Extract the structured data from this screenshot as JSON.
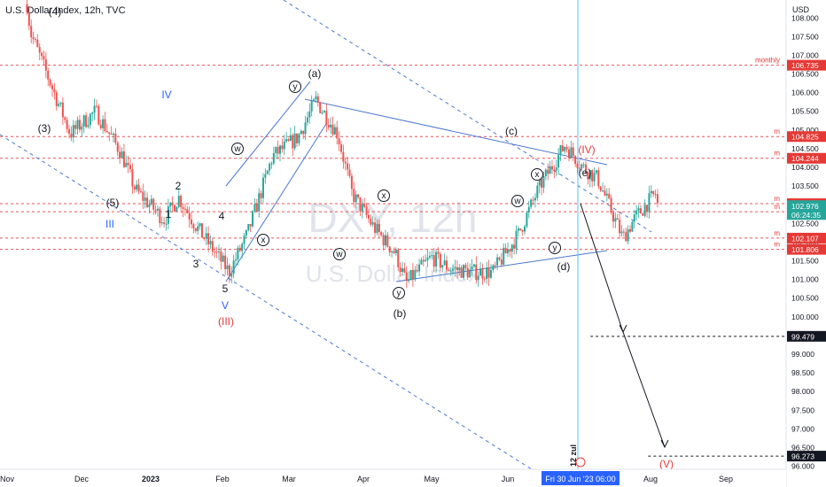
{
  "header": {
    "title": "U.S. Dollar Index, 12h, TVC",
    "currency": "USD"
  },
  "watermark": {
    "ticker": "DXY, 12h",
    "name": "U.S. Dollar Index"
  },
  "colors": {
    "up": "#26a69a",
    "down": "#ef5350",
    "trend": "#4a78d0",
    "wave_red": "#e53935",
    "level_red": "#e53935",
    "price_green": "#26a69a",
    "crosshair": "#4fc3f7"
  },
  "chart_data": {
    "type": "candlestick",
    "title": "U.S. Dollar Index, 12h, TVC",
    "ylim": [
      95.92,
      108.48
    ],
    "y_ticks": [
      "108.000",
      "107.500",
      "107.000",
      "106.500",
      "106.000",
      "105.500",
      "105.000",
      "104.500",
      "104.000",
      "103.500",
      "103.000",
      "102.500",
      "102.000",
      "101.500",
      "101.000",
      "100.500",
      "100.000",
      "99.500",
      "99.000",
      "98.500",
      "98.000",
      "97.500",
      "97.000",
      "96.500",
      "96.000"
    ],
    "x_ticks": [
      "Nov",
      "Dec",
      "2023",
      "Feb",
      "Mar",
      "Apr",
      "May",
      "Jun",
      "Jul",
      "Aug",
      "Sep"
    ],
    "price_path": [
      [
        0,
        113
      ],
      [
        0.35,
        107.6
      ],
      [
        0.9,
        104.9
      ],
      [
        1.25,
        105.5
      ],
      [
        1.6,
        104.4
      ],
      [
        1.8,
        103.4
      ],
      [
        2.2,
        102.6
      ],
      [
        2.4,
        103.2
      ],
      [
        2.65,
        102.4
      ],
      [
        3.1,
        101.2
      ],
      [
        3.35,
        102.2
      ],
      [
        3.7,
        104.3
      ],
      [
        4.05,
        104.8
      ],
      [
        4.3,
        105.8
      ],
      [
        4.6,
        104.9
      ],
      [
        4.8,
        103.3
      ],
      [
        5.1,
        102.4
      ],
      [
        5.4,
        101.7
      ],
      [
        5.55,
        100.9
      ],
      [
        5.9,
        101.6
      ],
      [
        6.15,
        101.3
      ],
      [
        6.45,
        101.2
      ],
      [
        6.75,
        101.2
      ],
      [
        7.1,
        102.2
      ],
      [
        7.4,
        103.5
      ],
      [
        7.75,
        104.6
      ],
      [
        8.0,
        104.0
      ],
      [
        8.2,
        103.7
      ],
      [
        8.55,
        102.1
      ],
      [
        8.7,
        102.6
      ],
      [
        9.0,
        103.3
      ],
      [
        9.03,
        103.0
      ]
    ],
    "last_price": "102.976",
    "countdown": "06:24:35",
    "cursor_date": "Fri 30 Jun '23",
    "cursor_time": "06:00",
    "date_marker": "12 zul",
    "levels": [
      {
        "price": 106.735,
        "label": "106.735",
        "tag": "monthly"
      },
      {
        "price": 104.825,
        "label": "104.825",
        "tag": "m"
      },
      {
        "price": 104.244,
        "label": "104.244",
        "tag": "m"
      },
      {
        "price": 103.03,
        "label": "103.030",
        "tag": "m"
      },
      {
        "price": 102.813,
        "label": "102.813",
        "tag": "m"
      },
      {
        "price": 102.107,
        "label": "102.107",
        "tag": "m"
      },
      {
        "price": 101.806,
        "label": "101.806",
        "tag": "m"
      }
    ],
    "targets": [
      {
        "price": 99.479,
        "label": "99.479"
      },
      {
        "price": 96.273,
        "label": "96.273"
      }
    ],
    "wave_labels": [
      {
        "text": "(4)",
        "color": "black"
      },
      {
        "text": "(3)",
        "color": "black"
      },
      {
        "text": "(5)",
        "color": "black"
      },
      {
        "text": "IV",
        "color": "blue"
      },
      {
        "text": "III",
        "color": "blue"
      },
      {
        "text": "2",
        "color": "black"
      },
      {
        "text": "1",
        "color": "black"
      },
      {
        "text": "3",
        "color": "black"
      },
      {
        "text": "4",
        "color": "black"
      },
      {
        "text": "5",
        "color": "black"
      },
      {
        "text": "V",
        "color": "blue"
      },
      {
        "text": "(III)",
        "color": "red"
      },
      {
        "text": "(a)",
        "color": "black"
      },
      {
        "text": "(b)",
        "color": "black"
      },
      {
        "text": "(c)",
        "color": "black"
      },
      {
        "text": "(d)",
        "color": "black"
      },
      {
        "text": "(e)",
        "color": "black"
      },
      {
        "text": "(IV)",
        "color": "red"
      },
      {
        "text": "(V)",
        "color": "red"
      }
    ],
    "circle_labels": [
      "y",
      "w",
      "x",
      "x",
      "w",
      "y",
      "w",
      "x",
      "y",
      "x",
      "w",
      "y"
    ]
  }
}
